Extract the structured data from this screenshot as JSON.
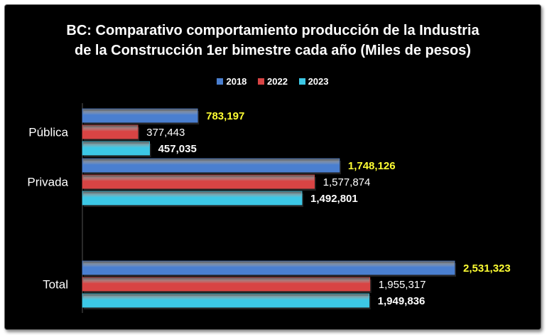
{
  "chart_data": {
    "type": "bar",
    "orientation": "horizontal",
    "title": "BC: Comparativo comportamiento producción de la Industria\nde la Construcción 1er bimestre cada año (Miles de pesos)",
    "categories": [
      "Pública",
      "Privada",
      "Total"
    ],
    "series": [
      {
        "name": "2018",
        "color": "#4a7fd0",
        "values": [
          783197,
          1748126,
          2531323
        ],
        "label_color": "#ffff33"
      },
      {
        "name": "2022",
        "color": "#d84444",
        "values": [
          377443,
          1577874,
          1955317
        ],
        "label_color": "#ffffff"
      },
      {
        "name": "2023",
        "color": "#3cc8e6",
        "values": [
          457035,
          1492801,
          1949836
        ],
        "label_color": "#ffffff"
      }
    ],
    "data_labels": [
      [
        "783,197",
        "1,748,126",
        "2,531,323"
      ],
      [
        "377,443",
        "1,577,874",
        "1,955,317"
      ],
      [
        "457,035",
        "1,492,801",
        "1,949,836"
      ]
    ],
    "xlim": [
      0,
      2531323
    ],
    "legend_position": "top",
    "grid": false,
    "background": "#000000"
  }
}
